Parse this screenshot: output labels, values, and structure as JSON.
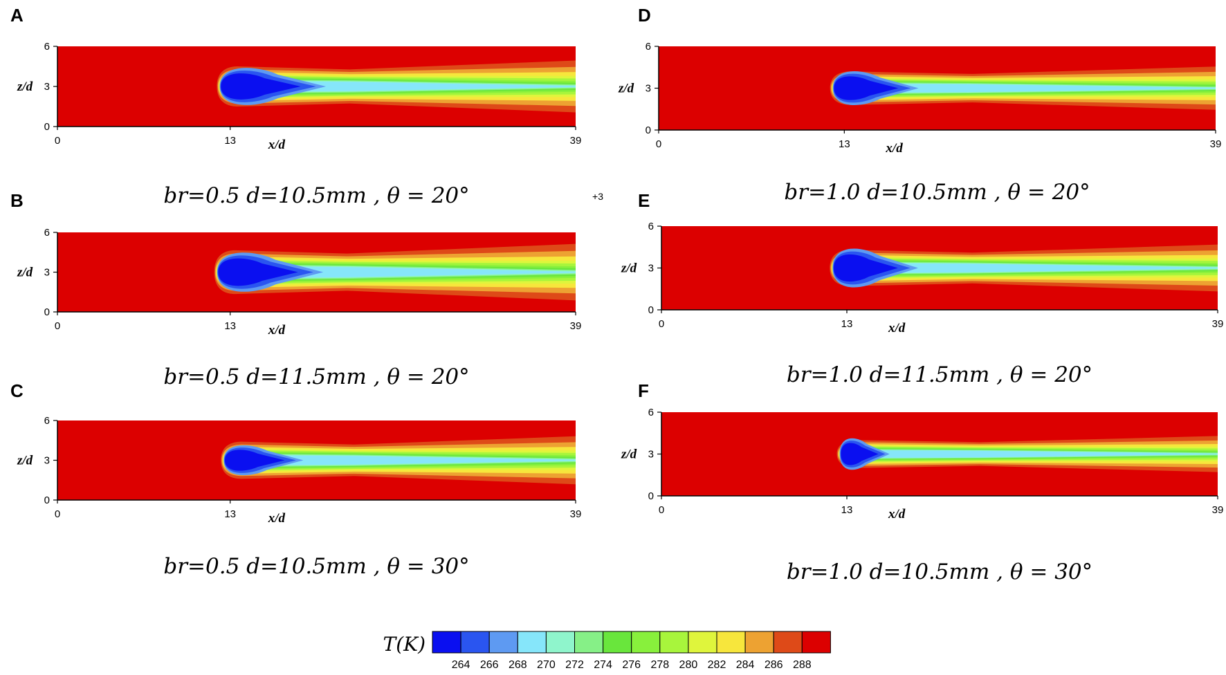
{
  "chart_data": {
    "type": "heatmap",
    "colorbar": {
      "title": "T(K)",
      "ticks": [
        "264",
        "266",
        "268",
        "270",
        "272",
        "274",
        "276",
        "278",
        "280",
        "282",
        "284",
        "286",
        "288"
      ],
      "colors": [
        "#0a0ff0",
        "#2a55f0",
        "#5e9af2",
        "#86e6fa",
        "#8ff5cc",
        "#86f087",
        "#69e63c",
        "#88f03c",
        "#a8f53c",
        "#dff53c",
        "#f7e63c",
        "#eda232",
        "#de4a18",
        "#dc0000"
      ]
    },
    "annotation": "+3",
    "panels": [
      {
        "id": "A",
        "caption": "br=0.5 d=10.5mm , θ = 20°",
        "xlabel": "x/d",
        "ylabel": "z/d",
        "xticks": [
          "0",
          "13",
          "39"
        ],
        "yticks": [
          "0",
          "3",
          "6"
        ],
        "xlim": [
          0,
          39
        ],
        "ylim": [
          0,
          6
        ],
        "jet": {
          "x_start": 12.0,
          "core_width": 3.2,
          "core_length": 8,
          "plume_width": 3.0
        }
      },
      {
        "id": "B",
        "caption": "br=0.5 d=11.5mm , θ = 20°",
        "xlabel": "x/d",
        "ylabel": "z/d",
        "xticks": [
          "0",
          "13",
          "39"
        ],
        "yticks": [
          "0",
          "3",
          "6"
        ],
        "xlim": [
          0,
          39
        ],
        "ylim": [
          0,
          6
        ],
        "jet": {
          "x_start": 11.8,
          "core_width": 3.4,
          "core_length": 8,
          "plume_width": 3.3
        }
      },
      {
        "id": "C",
        "caption": "br=0.5 d=10.5mm , θ = 30°",
        "xlabel": "x/d",
        "ylabel": "z/d",
        "xticks": [
          "0",
          "13",
          "39"
        ],
        "yticks": [
          "0",
          "3",
          "6"
        ],
        "xlim": [
          0,
          39
        ],
        "ylim": [
          0,
          6
        ],
        "jet": {
          "x_start": 12.3,
          "core_width": 2.6,
          "core_length": 6,
          "plume_width": 2.8
        }
      },
      {
        "id": "D",
        "caption": "br=1.0 d=10.5mm , θ = 20°",
        "xlabel": "x/d",
        "ylabel": "z/d",
        "xticks": [
          "0",
          "13",
          "39"
        ],
        "yticks": [
          "0",
          "3",
          "6"
        ],
        "xlim": [
          0,
          39
        ],
        "ylim": [
          0,
          6
        ],
        "jet": {
          "x_start": 12.0,
          "core_width": 2.8,
          "core_length": 6,
          "plume_width": 2.4
        }
      },
      {
        "id": "E",
        "caption": "br=1.0 d=11.5mm , θ = 20°",
        "xlabel": "x/d",
        "ylabel": "z/d",
        "xticks": [
          "0",
          "13",
          "39"
        ],
        "yticks": [
          "0",
          "3",
          "6"
        ],
        "xlim": [
          0,
          39
        ],
        "ylim": [
          0,
          6
        ],
        "jet": {
          "x_start": 11.8,
          "core_width": 3.2,
          "core_length": 6,
          "plume_width": 2.6
        }
      },
      {
        "id": "F",
        "caption": "br=1.0 d=10.5mm , θ = 30°",
        "xlabel": "x/d",
        "ylabel": "z/d",
        "xticks": [
          "0",
          "13",
          "39"
        ],
        "yticks": [
          "0",
          "3",
          "6"
        ],
        "xlim": [
          0,
          39
        ],
        "ylim": [
          0,
          6
        ],
        "jet": {
          "x_start": 12.3,
          "core_width": 2.6,
          "core_length": 3.5,
          "plume_width": 2.0
        }
      }
    ]
  }
}
